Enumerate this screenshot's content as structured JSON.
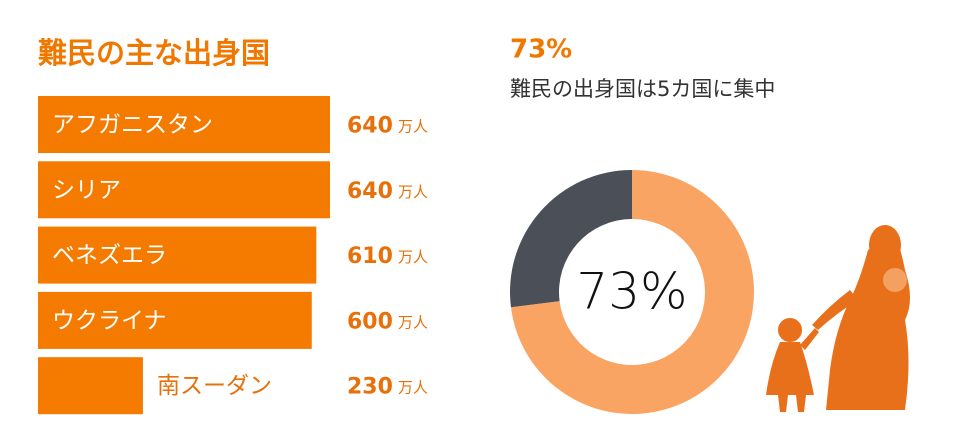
{
  "chart_data": [
    {
      "type": "hbar",
      "title": "難民の主な出身国",
      "categories": [
        "アフガニスタン",
        "シリア",
        "ベネズエラ",
        "ウクライナ",
        "南スーダン"
      ],
      "values": [
        640,
        640,
        610,
        600,
        230
      ],
      "unit": "万人",
      "color": "#f47b00",
      "label_color": "#e8700a"
    },
    {
      "type": "donut",
      "title": "73%",
      "subtitle": "難民の出身国は5カ国に集中",
      "center_label": "73%",
      "values": [
        73,
        27
      ],
      "colors": [
        "#f9a463",
        "#4b5058"
      ]
    }
  ]
}
